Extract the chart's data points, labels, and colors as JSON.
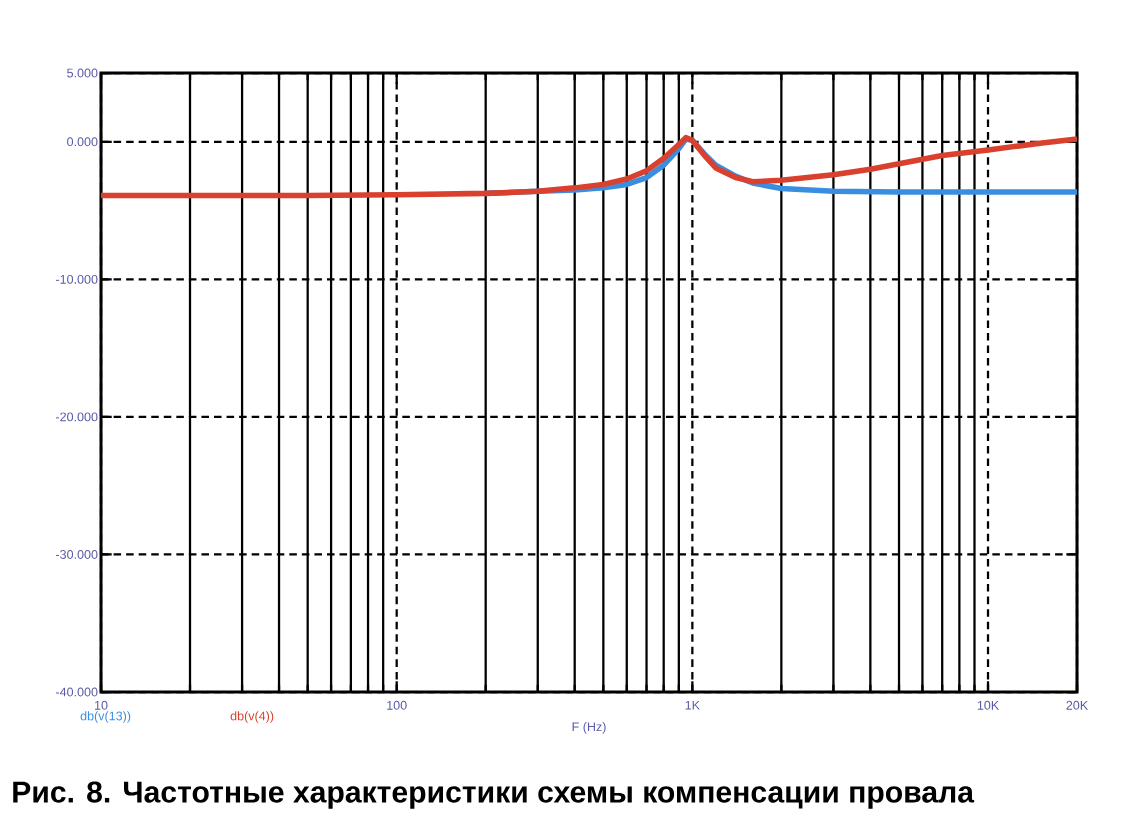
{
  "chart_data": {
    "type": "line",
    "title": "Рис. 8. Частотные характеристики схемы компенсации провала",
    "xlabel": "F (Hz)",
    "log": "x",
    "grid": true,
    "legend": "bottom left",
    "marker": "none",
    "line_style": "solid",
    "xlim": [
      10,
      20000
    ],
    "ylim": [
      -40,
      5
    ],
    "xticks": [
      10,
      100,
      {
        "value": 1000,
        "label": "1K"
      },
      {
        "value": 10000,
        "label": "10K"
      },
      {
        "value": 20000,
        "label": "20K"
      }
    ],
    "yticks": [
      {
        "value": -40,
        "label": "-40.000"
      },
      {
        "value": -30,
        "label": "-30.000"
      },
      {
        "value": -20,
        "label": "-20.000"
      },
      {
        "value": -10,
        "label": "-10.000"
      },
      {
        "value": 0,
        "label": "0.000"
      },
      {
        "value": 5,
        "label": "5.000"
      }
    ],
    "series": [
      {
        "name": "db(v(13))",
        "color": "#3a8ee0",
        "x": [
          200,
          300,
          400,
          500,
          600,
          700,
          800,
          900,
          950,
          1000,
          1100,
          1200,
          1400,
          1600,
          2000,
          3000,
          5000,
          10000,
          20000
        ],
        "values": [
          -3.75,
          -3.6,
          -3.5,
          -3.35,
          -3.1,
          -2.6,
          -1.7,
          -0.5,
          0.2,
          0.1,
          -0.9,
          -1.7,
          -2.5,
          -3.0,
          -3.4,
          -3.6,
          -3.65,
          -3.65,
          -3.65
        ]
      },
      {
        "name": "db(v(4))",
        "color": "#d9402e",
        "x": [
          10,
          20,
          50,
          100,
          200,
          300,
          400,
          500,
          600,
          700,
          800,
          900,
          950,
          1000,
          1100,
          1200,
          1400,
          1600,
          2000,
          3000,
          4000,
          5000,
          7000,
          10000,
          15000,
          20000
        ],
        "values": [
          -3.9,
          -3.9,
          -3.9,
          -3.85,
          -3.75,
          -3.6,
          -3.35,
          -3.1,
          -2.7,
          -2.1,
          -1.2,
          -0.2,
          0.3,
          0.1,
          -1.0,
          -1.9,
          -2.6,
          -2.9,
          -2.8,
          -2.4,
          -2.0,
          -1.6,
          -1.0,
          -0.6,
          -0.1,
          0.2
        ]
      }
    ]
  }
}
